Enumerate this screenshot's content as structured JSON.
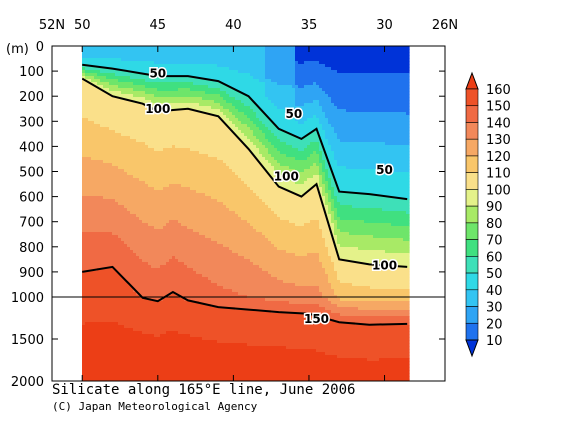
{
  "chart_data": {
    "type": "heatmap",
    "title": "Silicate along 165°E line, June 2006",
    "credit": "(C) Japan Meteorological Agency",
    "y_unit_label": "(m)",
    "x_tick_labels": [
      "52N",
      "50",
      "45",
      "40",
      "35",
      "30",
      "26N"
    ],
    "x_ticks_lat": [
      52,
      50,
      45,
      40,
      35,
      30,
      26
    ],
    "xlim": [
      52,
      26
    ],
    "data_x_range": [
      50,
      28.5
    ],
    "y_tick_labels": [
      "0",
      "100",
      "200",
      "300",
      "400",
      "500",
      "600",
      "700",
      "800",
      "900",
      "1000",
      "1500",
      "2000"
    ],
    "y_ticks_depth": [
      0,
      100,
      200,
      300,
      400,
      500,
      600,
      700,
      800,
      900,
      1000,
      1500,
      2000
    ],
    "ylim": [
      0,
      2000
    ],
    "y_break_depth": 1000,
    "colorbar": {
      "levels": [
        10,
        20,
        30,
        40,
        50,
        60,
        70,
        80,
        90,
        100,
        110,
        120,
        130,
        140,
        150,
        160
      ],
      "labels": [
        "160",
        "150",
        "140",
        "130",
        "120",
        "110",
        "100",
        "90",
        "80",
        "70",
        "60",
        "50",
        "40",
        "30",
        "20",
        "10"
      ],
      "colors": [
        "#0033d8",
        "#1f72ee",
        "#2fa4f4",
        "#33c4f2",
        "#2fd9e6",
        "#3ee0b8",
        "#40e080",
        "#6ee56a",
        "#a8ea66",
        "#e4f28a",
        "#fae08a",
        "#f9c66a",
        "#f6a864",
        "#f2885a",
        "#f06a44",
        "#ee5228",
        "#ec3e16"
      ],
      "extend": "both"
    },
    "series": [
      {
        "name": "50",
        "x": [
          50,
          48,
          46,
          45,
          43,
          41,
          39,
          37,
          35.5,
          34.5,
          33,
          31,
          28.5
        ],
        "y": [
          75,
          90,
          110,
          120,
          120,
          140,
          200,
          330,
          370,
          330,
          580,
          590,
          610
        ]
      },
      {
        "name": "100",
        "x": [
          50,
          48,
          46,
          45,
          43,
          41,
          39,
          37,
          35.5,
          34.5,
          33,
          31,
          28.5
        ],
        "y": [
          130,
          200,
          230,
          260,
          250,
          280,
          410,
          560,
          600,
          550,
          850,
          870,
          880
        ]
      },
      {
        "name": "150",
        "x": [
          50,
          48,
          46,
          45,
          44,
          43,
          41,
          39,
          37,
          35,
          33,
          31,
          28.5
        ],
        "y": [
          900,
          880,
          1010,
          1050,
          980,
          1040,
          1120,
          1150,
          1180,
          1200,
          1300,
          1330,
          1320
        ]
      }
    ],
    "contour_labels": [
      {
        "text": "50",
        "lat": 45,
        "depth": 110
      },
      {
        "text": "100",
        "lat": 45,
        "depth": 250
      },
      {
        "text": "50",
        "lat": 36,
        "depth": 270
      },
      {
        "text": "100",
        "lat": 36.5,
        "depth": 520
      },
      {
        "text": "50",
        "lat": 30,
        "depth": 495
      },
      {
        "text": "100",
        "lat": 30,
        "depth": 875
      },
      {
        "text": "150",
        "lat": 34.5,
        "depth": 1260
      }
    ]
  }
}
